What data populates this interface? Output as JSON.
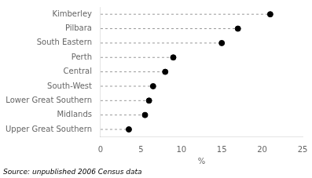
{
  "chart_data": {
    "type": "dot",
    "orientation": "horizontal",
    "categories": [
      "Kimberley",
      "Pilbara",
      "South Eastern",
      "Perth",
      "Central",
      "South-West",
      "Lower Great Southern",
      "Midlands",
      "Upper Great Southern"
    ],
    "values": [
      21.0,
      17.0,
      15.0,
      9.0,
      8.0,
      6.5,
      6.0,
      5.5,
      3.5
    ],
    "color": "#000000",
    "marker": "circle",
    "line_style": "dashed",
    "xlabel": "%",
    "xlim": [
      0,
      25
    ],
    "xticks": [
      0,
      5,
      10,
      15,
      20,
      25
    ],
    "grid": false,
    "annotation": "Source: unpublished 2006 Census data"
  }
}
